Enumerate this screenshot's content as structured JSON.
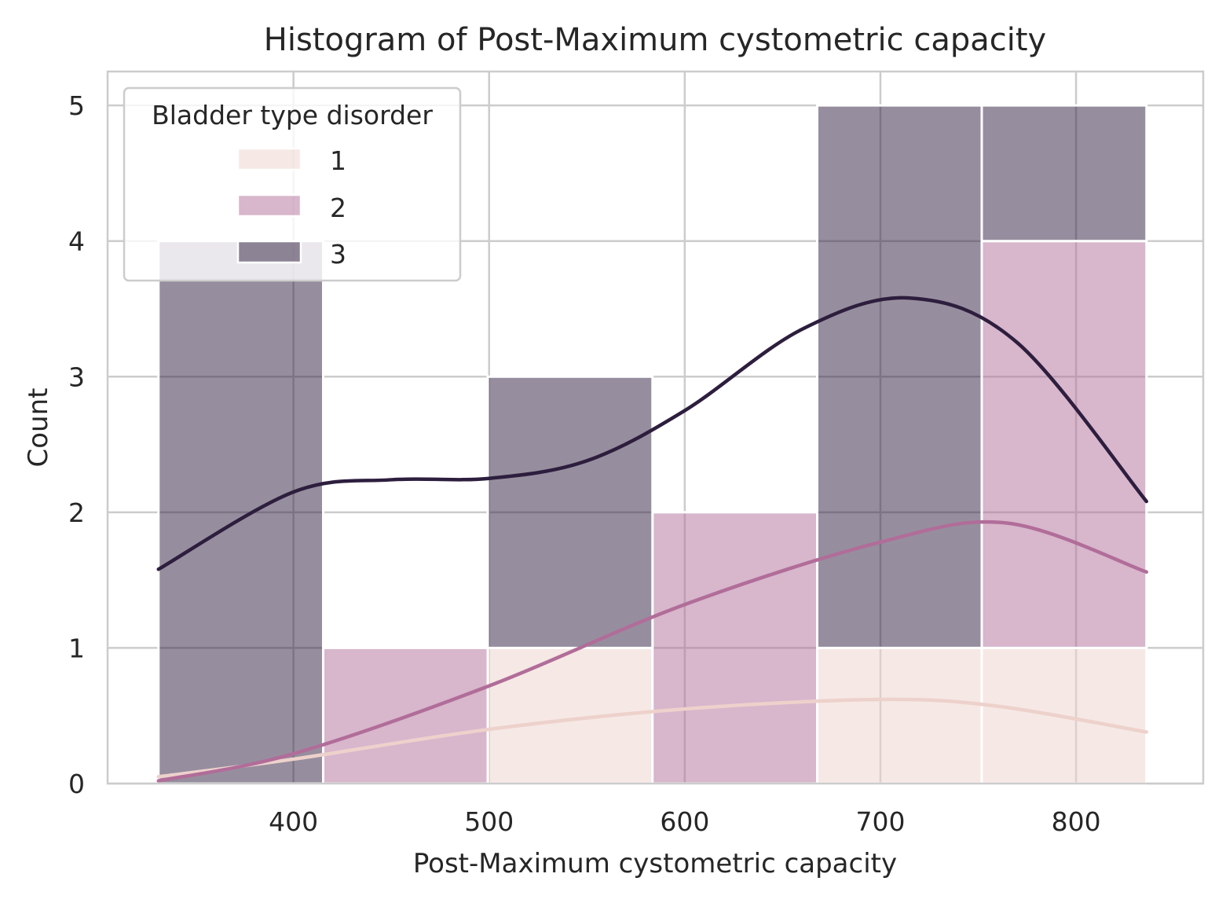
{
  "chart_data": {
    "type": "bar",
    "subtype": "stacked-histogram-with-kde",
    "title": "Histogram of Post-Maximum cystometric capacity",
    "xlabel": "Post-Maximum cystometric capacity",
    "ylabel": "Count",
    "xlim": [
      305,
      865
    ],
    "ylim": [
      0,
      5.25
    ],
    "xticks": [
      400,
      500,
      600,
      700,
      800
    ],
    "yticks": [
      0,
      1,
      2,
      3,
      4,
      5
    ],
    "grid": true,
    "bin_edges": [
      331,
      415.2,
      499.3,
      583.5,
      667.7,
      751.8,
      836
    ],
    "series": [
      {
        "name": "1",
        "color": "#edd1cb",
        "counts": [
          0,
          0,
          1,
          0,
          1,
          1
        ]
      },
      {
        "name": "2",
        "color": "#b16d99",
        "counts": [
          0,
          1,
          0,
          2,
          0,
          3
        ]
      },
      {
        "name": "3",
        "color": "#2d1e3e",
        "counts": [
          4,
          0,
          2,
          0,
          4,
          1
        ]
      }
    ],
    "kde": [
      {
        "name": "1",
        "color": "#edd1cb",
        "x": [
          331,
          400,
          500,
          600,
          700,
          760,
          836
        ],
        "y": [
          0.05,
          0.18,
          0.4,
          0.55,
          0.62,
          0.57,
          0.38
        ]
      },
      {
        "name": "2",
        "color": "#b16d99",
        "x": [
          331,
          400,
          500,
          600,
          700,
          765,
          836
        ],
        "y": [
          0.02,
          0.22,
          0.72,
          1.32,
          1.78,
          1.92,
          1.56
        ]
      },
      {
        "name": "3",
        "color": "#2d1e3e",
        "x": [
          331,
          400,
          450,
          500,
          550,
          600,
          660,
          715,
          770,
          836
        ],
        "y": [
          1.58,
          2.15,
          2.24,
          2.25,
          2.38,
          2.75,
          3.35,
          3.58,
          3.25,
          2.08
        ]
      }
    ],
    "legend": {
      "title": "Bladder type disorder",
      "position": "top-left",
      "items": [
        {
          "label": "1",
          "color": "#edd1cb"
        },
        {
          "label": "2",
          "color": "#b16d99"
        },
        {
          "label": "3",
          "color": "#2d1e3e"
        }
      ]
    }
  }
}
